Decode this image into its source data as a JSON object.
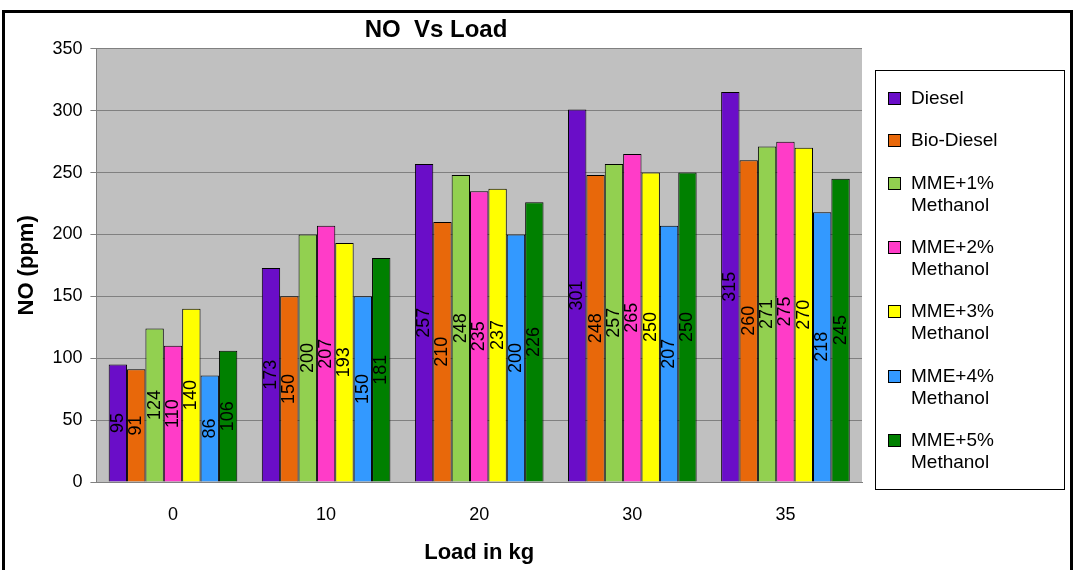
{
  "chart_data": {
    "type": "bar",
    "title": "NO  Vs Load",
    "xlabel": "Load in kg",
    "ylabel": "NO (ppm)",
    "categories": [
      "0",
      "10",
      "20",
      "30",
      "35"
    ],
    "series": [
      {
        "name": "Diesel",
        "color": "#6a0dc8",
        "values": [
          95,
          173,
          257,
          301,
          315
        ]
      },
      {
        "name": "Bio-Diesel",
        "color": "#e8680a",
        "values": [
          91,
          150,
          210,
          248,
          260
        ]
      },
      {
        "name": "MME+1% Methanol",
        "color": "#92d050",
        "values": [
          124,
          200,
          248,
          257,
          271
        ]
      },
      {
        "name": "MME+2% Methanol",
        "color": "#ff3cc8",
        "values": [
          110,
          207,
          235,
          265,
          275
        ]
      },
      {
        "name": "MME+3% Methanol",
        "color": "#ffff00",
        "values": [
          140,
          193,
          237,
          250,
          270
        ]
      },
      {
        "name": "MME+4% Methanol",
        "color": "#3399ff",
        "values": [
          86,
          150,
          200,
          207,
          218
        ]
      },
      {
        "name": "MME+5% Methanol",
        "color": "#008000",
        "values": [
          106,
          181,
          226,
          250,
          245
        ]
      }
    ],
    "ylim": [
      0,
      350
    ],
    "yticks": [
      0,
      50,
      100,
      150,
      200,
      250,
      300,
      350
    ],
    "grid": "y",
    "legend": "right",
    "data_labels": true
  }
}
